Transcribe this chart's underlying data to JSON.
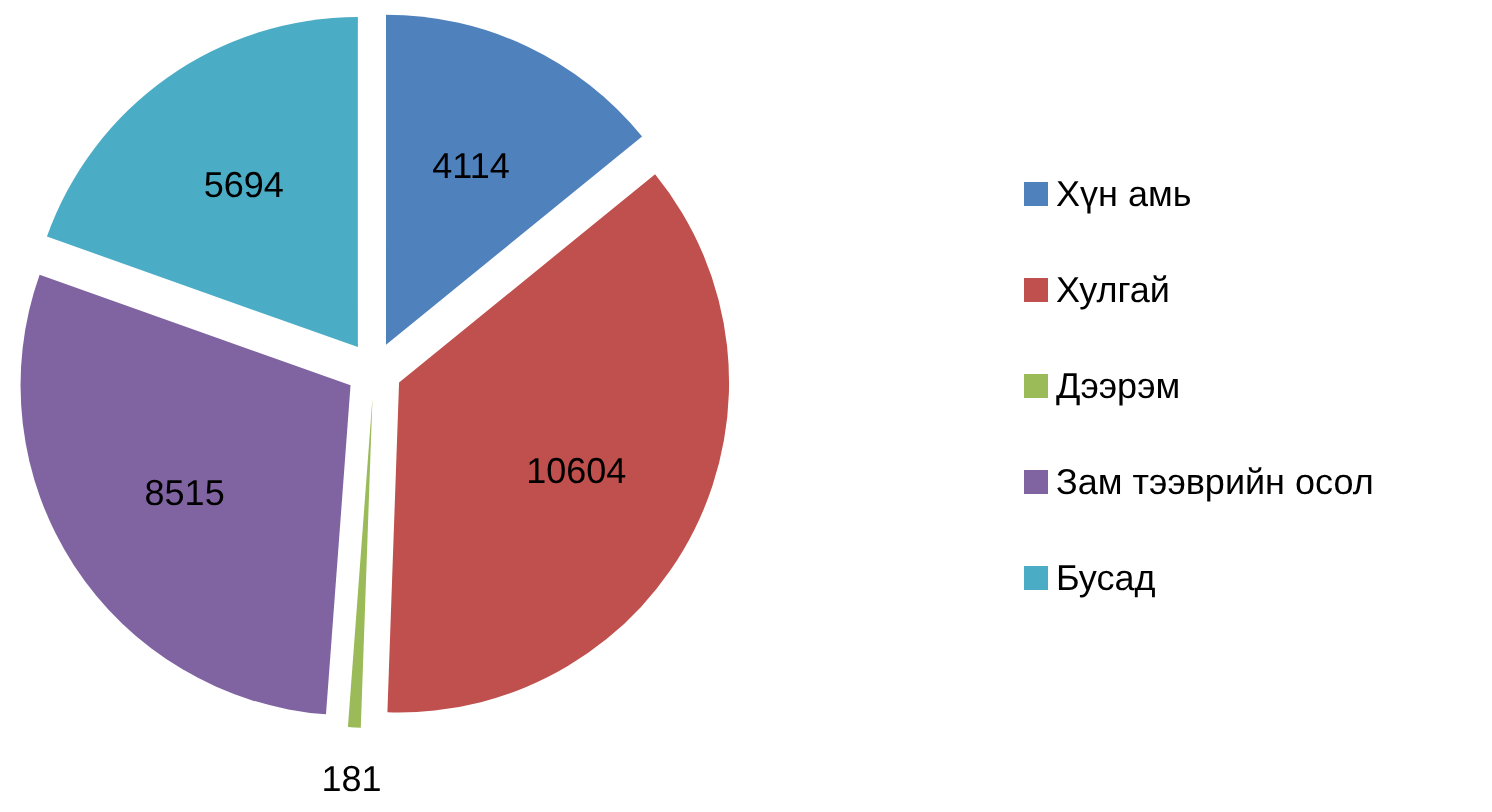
{
  "chart_data": {
    "type": "pie",
    "categories": [
      "Хүн амь",
      "Хулгай",
      "Дээрэм",
      "Зам тээврийн осол",
      "Бусад"
    ],
    "values": [
      4114,
      10604,
      181,
      8515,
      5694
    ],
    "colors": [
      "#4f81bd",
      "#c0504d",
      "#9bbb59",
      "#8064a2",
      "#4bacc6"
    ],
    "data_labels": true,
    "legend": "right"
  }
}
